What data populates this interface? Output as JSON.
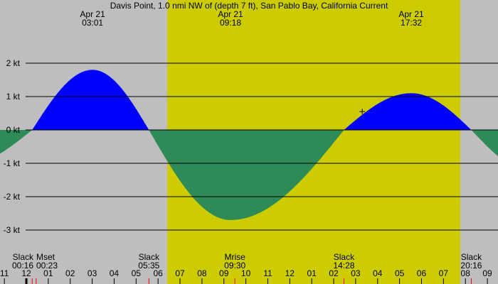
{
  "chart_data": {
    "type": "area",
    "title": "Davis Point, 1.0 nmi NW of (depth 7 ft), San Pablo Bay, California Current",
    "y_unit": "kt",
    "ylim": [
      -3.3,
      2.4
    ],
    "y_ticks": [
      {
        "v": 2,
        "label": "2 kt"
      },
      {
        "v": 1,
        "label": "1 kt"
      },
      {
        "v": 0,
        "label": "0 kt"
      },
      {
        "v": -1,
        "label": "-1 kt"
      },
      {
        "v": -2,
        "label": "-2 kt"
      },
      {
        "v": -3,
        "label": "-3 kt"
      }
    ],
    "grid": true,
    "x_hour_labels": [
      {
        "h": -1,
        "label": "11"
      },
      {
        "h": 0,
        "label": "12"
      },
      {
        "h": 1,
        "label": "01"
      },
      {
        "h": 2,
        "label": "02"
      },
      {
        "h": 3,
        "label": "03"
      },
      {
        "h": 4,
        "label": "04"
      },
      {
        "h": 5,
        "label": "05"
      },
      {
        "h": 6,
        "label": "06"
      },
      {
        "h": 7,
        "label": "07"
      },
      {
        "h": 8,
        "label": "08"
      },
      {
        "h": 9,
        "label": "09"
      },
      {
        "h": 10,
        "label": "10"
      },
      {
        "h": 11,
        "label": "11"
      },
      {
        "h": 12,
        "label": "12"
      },
      {
        "h": 13,
        "label": "01"
      },
      {
        "h": 14,
        "label": "02"
      },
      {
        "h": 15,
        "label": "03"
      },
      {
        "h": 16,
        "label": "04"
      },
      {
        "h": 17,
        "label": "05"
      },
      {
        "h": 18,
        "label": "06"
      },
      {
        "h": 19,
        "label": "07"
      },
      {
        "h": 20,
        "label": "08"
      },
      {
        "h": 21,
        "label": "09"
      }
    ],
    "daylight": {
      "start_hour": 6.42,
      "end_hour": 19.77
    },
    "peaks": [
      {
        "h": 3.017,
        "date": "Apr 21",
        "time": "03:01",
        "value": 1.8
      },
      {
        "h": 9.3,
        "date": "Apr 21",
        "time": "09:18",
        "value": -2.7
      },
      {
        "h": 17.533,
        "date": "Apr 21",
        "time": "17:32",
        "value": 1.1
      }
    ],
    "bottom_events": [
      {
        "h": 0.267,
        "label": "Slack",
        "time": "00:16"
      },
      {
        "h": 0.383,
        "label": "Mset",
        "time": "00:23"
      },
      {
        "h": 5.583,
        "label": "Slack",
        "time": "05:35"
      },
      {
        "h": 9.5,
        "label": "Mrise",
        "time": "09:30"
      },
      {
        "h": 14.467,
        "label": "Slack",
        "time": "14:28"
      },
      {
        "h": 20.267,
        "label": "Slack",
        "time": "20:16"
      }
    ],
    "curve_events": [
      [
        -3.0,
        -1.1
      ],
      [
        0.267,
        0
      ],
      [
        3.017,
        1.8
      ],
      [
        5.583,
        0
      ],
      [
        9.3,
        -2.7
      ],
      [
        14.467,
        0
      ],
      [
        17.533,
        1.1
      ],
      [
        20.267,
        0
      ],
      [
        23.2,
        -1.3
      ]
    ],
    "current_marker": {
      "h": 15.3,
      "value": 0.55
    },
    "colors": {
      "flood": "#0000ff",
      "ebb": "#2e8b57",
      "day": "#cccc00",
      "night": "#bebebe",
      "marker_tick": "#ff0000"
    }
  }
}
